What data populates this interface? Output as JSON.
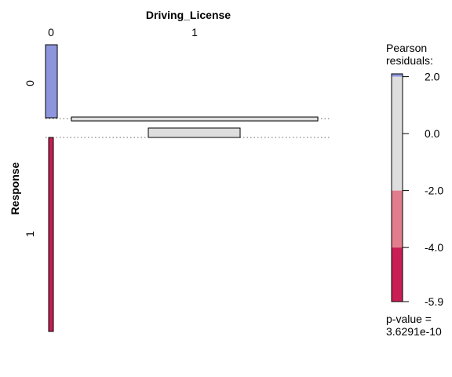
{
  "chart_data": {
    "type": "mosaic",
    "x_variable": "Driving_License",
    "y_variable": "Response",
    "x_levels": [
      "0",
      "1"
    ],
    "y_levels": [
      "0",
      "1"
    ],
    "cells": [
      {
        "driving_license": "0",
        "response": "0",
        "proportion_of_column": 0.27,
        "residual": 2.1
      },
      {
        "driving_license": "0",
        "response": "1",
        "proportion_of_column": 0.73,
        "residual": -5.9
      },
      {
        "driving_license": "1",
        "response": "0",
        "proportion_of_column": 0.5,
        "residual": 0.2
      },
      {
        "driving_license": "1",
        "response": "1",
        "proportion_of_column": 0.5,
        "residual": -0.1
      }
    ],
    "column_widths": [
      0.008,
      0.992
    ],
    "legend": {
      "title_line1": "Pearson",
      "title_line2": "residuals:",
      "ticks": [
        "2.0",
        "0.0",
        "-2.0",
        "-4.0",
        "-5.9"
      ],
      "range": [
        -5.9,
        2.1
      ],
      "bands": [
        {
          "from": 2.0,
          "to": 2.1,
          "color": "#8d96dc"
        },
        {
          "from": -2.0,
          "to": 2.0,
          "color": "#dedede"
        },
        {
          "from": -4.0,
          "to": -2.0,
          "color": "#e17d8c"
        },
        {
          "from": -5.9,
          "to": -4.0,
          "color": "#c81e55"
        }
      ]
    },
    "p_value_label": "p-value =",
    "p_value": "3.6291e-10"
  }
}
